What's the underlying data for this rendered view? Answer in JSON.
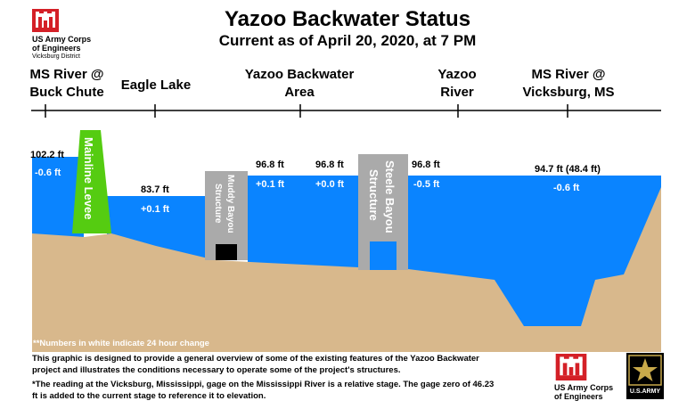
{
  "title": "Yazoo Backwater Status",
  "subtitle": "Current as of April 20, 2020, at 7 PM",
  "logo_top": {
    "line1": "US Army Corps",
    "line2": "of Engineers",
    "line3": "Vicksburg District"
  },
  "locations": [
    {
      "line1": "MS River @",
      "line2": "Buck Chute"
    },
    {
      "line1": "Eagle Lake",
      "line2": ""
    },
    {
      "line1": "Yazoo Backwater",
      "line2": "Area"
    },
    {
      "line1": "Yazoo",
      "line2": "River"
    },
    {
      "line1": "MS River @",
      "line2": "Vicksburg, MS"
    }
  ],
  "structures": {
    "levee": "Mainline Levee",
    "muddy_bayou": {
      "line1": "Muddy Bayou",
      "line2": "Structure"
    },
    "steele_bayou": {
      "line1": "Steele Bayou",
      "line2": "Structure"
    }
  },
  "readings": [
    {
      "stage": "102.2 ft",
      "change": "-0.6 ft"
    },
    {
      "stage": "83.7 ft",
      "change": "+0.1 ft"
    },
    {
      "stage": "96.8 ft",
      "change": "+0.1 ft"
    },
    {
      "stage": "96.8 ft",
      "change": "+0.0 ft"
    },
    {
      "stage": "96.8 ft",
      "change": "-0.5 ft"
    },
    {
      "stage": "94.7 ft (48.4 ft)",
      "change": "-0.6 ft"
    }
  ],
  "note_white": "**Numbers in white indicate 24 hour change",
  "footer": {
    "p1": "This graphic is designed to provide a general overview of some of the existing features of the Yazoo Backwater project and illustrates the conditions necessary to operate some of the project's structures.",
    "p2": "*The reading at the Vicksburg, Mississippi, gage on the Mississippi River is a relative stage. The gage zero of 46.23 ft is added to the current stage to reference it to elevation."
  },
  "logo_bottom": {
    "line1": "US Army Corps",
    "line2": "of Engineers"
  },
  "army_logo_text": "U.S.ARMY",
  "colors": {
    "water": "#0a84ff",
    "ground": "#d8b88c",
    "levee": "#55cc11",
    "structure": "#aaaaaa",
    "logo_red": "#d42027"
  }
}
